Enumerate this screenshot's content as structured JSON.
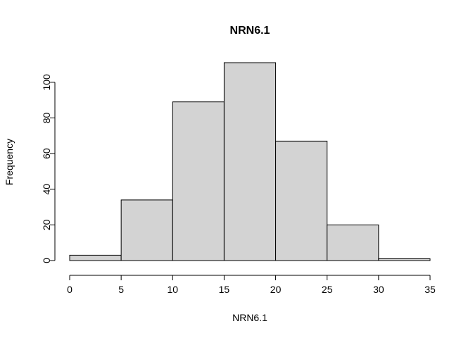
{
  "chart_data": {
    "type": "bar",
    "title": "NRN6.1",
    "xlabel": "NRN6.1",
    "ylabel": "Frequency",
    "bins": [
      {
        "start": 0,
        "end": 5,
        "count": 3
      },
      {
        "start": 5,
        "end": 10,
        "count": 34
      },
      {
        "start": 10,
        "end": 15,
        "count": 89
      },
      {
        "start": 15,
        "end": 20,
        "count": 111
      },
      {
        "start": 20,
        "end": 25,
        "count": 67
      },
      {
        "start": 25,
        "end": 30,
        "count": 20
      },
      {
        "start": 30,
        "end": 35,
        "count": 1
      }
    ],
    "x_ticks": [
      "0",
      "5",
      "10",
      "15",
      "20",
      "25",
      "30",
      "35"
    ],
    "y_ticks": [
      "0",
      "20",
      "40",
      "60",
      "80",
      "100"
    ],
    "xlim": [
      0,
      35
    ],
    "ylim": [
      0,
      111
    ],
    "grid": false,
    "bar_color": "#d3d3d3",
    "border_color": "#000000"
  }
}
